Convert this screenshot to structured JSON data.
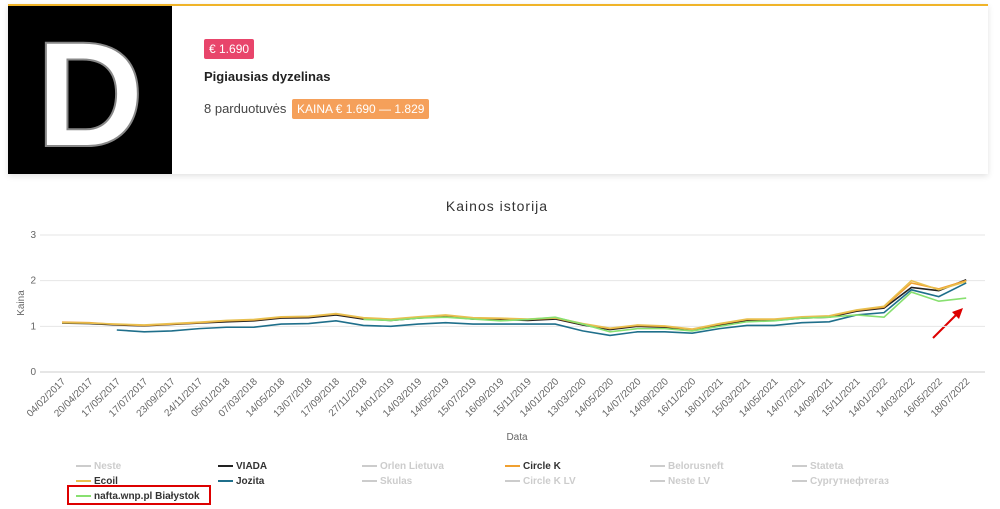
{
  "header": {
    "price": "€ 1.690",
    "title": "Pigiausias dyzelinas",
    "stores": "8 parduotuvės",
    "range": "KAINA € 1.690 — 1.829"
  },
  "chart_data": {
    "type": "line",
    "title": "Kainos istorija",
    "x_label": "Data",
    "y_label": "Kaina",
    "categories": [
      "04/02/2017",
      "20/04/2017",
      "17/05/2017",
      "17/07/2017",
      "23/09/2017",
      "24/11/2017",
      "05/01/2018",
      "07/03/2018",
      "14/05/2018",
      "13/07/2018",
      "17/09/2018",
      "27/11/2018",
      "14/01/2019",
      "14/03/2019",
      "14/05/2019",
      "15/07/2019",
      "16/09/2019",
      "15/11/2019",
      "14/01/2020",
      "13/03/2020",
      "14/05/2020",
      "14/07/2020",
      "14/09/2020",
      "16/11/2020",
      "18/01/2021",
      "15/03/2021",
      "14/05/2021",
      "14/07/2021",
      "14/09/2021",
      "15/11/2021",
      "14/01/2022",
      "14/03/2022",
      "16/05/2022",
      "18/07/2022"
    ],
    "ylim": [
      0,
      3
    ],
    "yticks": [
      0,
      1,
      2,
      3
    ],
    "grid": true,
    "series": [
      {
        "name": "Neste",
        "color": "#cccccc",
        "hidden": true
      },
      {
        "name": "VIADA",
        "color": "#222222",
        "values": [
          1.07,
          1.06,
          1.03,
          1.01,
          1.04,
          1.07,
          1.1,
          1.12,
          1.18,
          1.19,
          1.25,
          1.16,
          1.13,
          1.18,
          1.22,
          1.16,
          1.15,
          1.13,
          1.16,
          1.03,
          0.93,
          1.0,
          0.98,
          0.92,
          1.03,
          1.13,
          1.13,
          1.18,
          1.2,
          1.33,
          1.4,
          1.85,
          1.78,
          2.02
        ]
      },
      {
        "name": "Orlen Lietuva",
        "color": "#cccccc",
        "hidden": true
      },
      {
        "name": "Circle K",
        "color": "#f0a030",
        "values": [
          1.09,
          1.08,
          1.04,
          1.02,
          1.05,
          1.08,
          1.12,
          1.14,
          1.2,
          1.21,
          1.27,
          1.18,
          1.15,
          1.2,
          1.24,
          1.18,
          1.17,
          1.15,
          1.18,
          1.05,
          0.95,
          1.02,
          1.0,
          0.93,
          1.05,
          1.15,
          1.15,
          1.2,
          1.22,
          1.35,
          1.42,
          1.95,
          1.82,
          2.0
        ]
      },
      {
        "name": "Belorusneft",
        "color": "#cccccc",
        "hidden": true
      },
      {
        "name": "Stateta",
        "color": "#cccccc",
        "hidden": true
      },
      {
        "name": "Ecoil",
        "color": "#e8c050",
        "values": [
          1.08,
          1.07,
          1.05,
          1.03,
          1.06,
          1.09,
          1.13,
          1.15,
          1.21,
          1.22,
          1.28,
          1.19,
          1.16,
          1.21,
          1.25,
          1.19,
          1.18,
          1.16,
          1.19,
          1.06,
          0.96,
          1.03,
          1.01,
          0.94,
          1.06,
          1.16,
          1.16,
          1.21,
          1.23,
          1.36,
          1.44,
          2.0,
          1.8,
          1.98
        ]
      },
      {
        "name": "Jozita",
        "color": "#1f6f8b",
        "values": [
          null,
          null,
          0.92,
          0.88,
          0.9,
          0.95,
          0.98,
          0.98,
          1.05,
          1.06,
          1.12,
          1.02,
          1.0,
          1.05,
          1.08,
          1.05,
          1.05,
          1.05,
          1.05,
          0.9,
          0.8,
          0.88,
          0.88,
          0.85,
          0.95,
          1.02,
          1.02,
          1.08,
          1.1,
          1.25,
          1.3,
          1.8,
          1.65,
          1.95
        ]
      },
      {
        "name": "Skulas",
        "color": "#cccccc",
        "hidden": true
      },
      {
        "name": "Circle K LV",
        "color": "#cccccc",
        "hidden": true
      },
      {
        "name": "Neste LV",
        "color": "#cccccc",
        "hidden": true
      },
      {
        "name": "Сургутнефтегаз",
        "color": "#cccccc",
        "hidden": true
      },
      {
        "name": "nafta.wnp.pl Białystok",
        "color": "#88e070",
        "values": [
          null,
          null,
          null,
          null,
          null,
          null,
          null,
          null,
          null,
          null,
          null,
          1.15,
          1.13,
          1.18,
          1.2,
          1.16,
          1.12,
          1.15,
          1.2,
          1.05,
          0.88,
          0.95,
          0.95,
          0.9,
          1.0,
          1.1,
          1.12,
          1.18,
          1.2,
          1.25,
          1.2,
          1.75,
          1.55,
          1.62
        ]
      }
    ]
  }
}
